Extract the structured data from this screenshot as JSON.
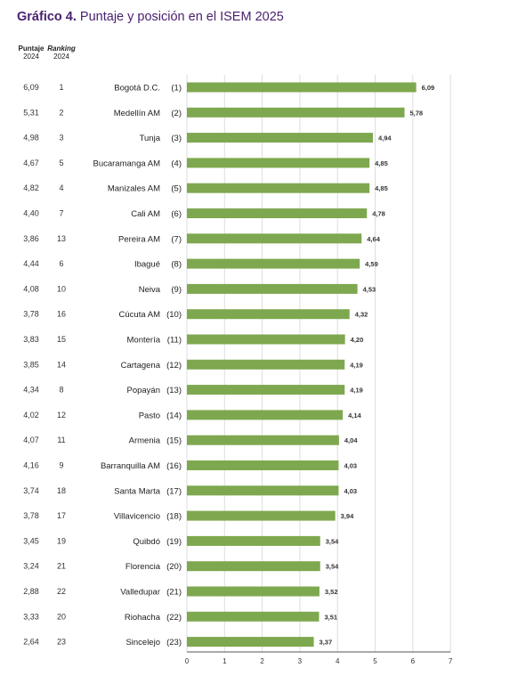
{
  "title": {
    "bold": "Gráfico 4.",
    "rest": "Puntaje y posición en el ISEM 2025"
  },
  "headers": {
    "score_line1": "Puntaje",
    "score_line2": "2024",
    "rank_line1": "Ranking",
    "rank_line2": "2024"
  },
  "colors": {
    "bar": "#7ea84f",
    "title": "#4a2170",
    "axis": "#555555",
    "grid": "#dddddd"
  },
  "chart_data": {
    "type": "bar",
    "orientation": "horizontal",
    "title": "Puntaje y posición en el ISEM 2025",
    "xlim": [
      0,
      7
    ],
    "xticks": [
      "0",
      "1",
      "2",
      "3",
      "4",
      "5",
      "6",
      "7"
    ],
    "categories": [
      "Bogotá D.C.",
      "Medellín AM",
      "Tunja",
      "Bucaramanga AM",
      "Manizales AM",
      "Cali AM",
      "Pereira AM",
      "Ibagué",
      "Neiva",
      "Cúcuta AM",
      "Montería",
      "Cartagena",
      "Popayán",
      "Pasto",
      "Armenia",
      "Barranquilla AM",
      "Santa Marta",
      "Villavicencio",
      "Quibdó",
      "Florencia",
      "Valledupar",
      "Riohacha",
      "Sincelejo"
    ],
    "ranks_2025": [
      "(1)",
      "(2)",
      "(3)",
      "(4)",
      "(5)",
      "(6)",
      "(7)",
      "(8)",
      "(9)",
      "(10)",
      "(11)",
      "(12)",
      "(13)",
      "(14)",
      "(15)",
      "(16)",
      "(17)",
      "(18)",
      "(19)",
      "(20)",
      "(21)",
      "(22)",
      "(23)"
    ],
    "values": [
      6.09,
      5.78,
      4.94,
      4.85,
      4.85,
      4.78,
      4.64,
      4.59,
      4.53,
      4.32,
      4.2,
      4.19,
      4.19,
      4.14,
      4.04,
      4.03,
      4.03,
      3.94,
      3.54,
      3.54,
      3.52,
      3.51,
      3.37
    ],
    "value_labels": [
      "6,09",
      "5,78",
      "4,94",
      "4,85",
      "4,85",
      "4,78",
      "4,64",
      "4,59",
      "4,53",
      "4,32",
      "4,20",
      "4,19",
      "4,19",
      "4,14",
      "4,04",
      "4,03",
      "4,03",
      "3,94",
      "3,54",
      "3,54",
      "3,52",
      "3,51",
      "3,37"
    ],
    "score_2024": [
      "6,09",
      "5,31",
      "4,98",
      "4,67",
      "4,82",
      "4,40",
      "3,86",
      "4,44",
      "4,08",
      "3,78",
      "3,83",
      "3,85",
      "4,34",
      "4,02",
      "4,07",
      "4,16",
      "3,74",
      "3,78",
      "3,45",
      "3,24",
      "2,88",
      "3,33",
      "2,64"
    ],
    "rank_2024": [
      "1",
      "2",
      "3",
      "5",
      "4",
      "7",
      "13",
      "6",
      "10",
      "16",
      "15",
      "14",
      "8",
      "12",
      "11",
      "9",
      "18",
      "17",
      "19",
      "21",
      "22",
      "20",
      "23"
    ],
    "grid": true
  }
}
